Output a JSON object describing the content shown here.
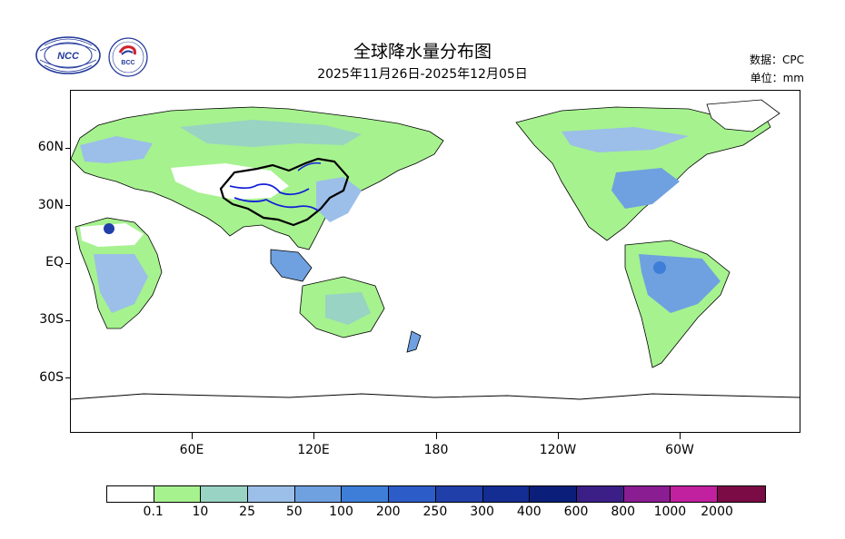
{
  "header": {
    "title": "全球降水量分布图",
    "date_range": "2025年11月26日-2025年12月05日",
    "source": "数据：CPC",
    "unit": "单位：mm"
  },
  "logos": {
    "ncc_text": "NCC",
    "bcc_text": "BCC"
  },
  "map": {
    "projection": "equirectangular, Pacific-centered",
    "lat_labels": [
      "60N",
      "30N",
      "EQ",
      "30S",
      "60S"
    ],
    "lon_labels": [
      "60E",
      "120E",
      "180",
      "120W",
      "60W"
    ]
  },
  "legend": {
    "levels": [
      "0.1",
      "10",
      "25",
      "50",
      "100",
      "200",
      "250",
      "300",
      "400",
      "600",
      "800",
      "1000",
      "2000"
    ],
    "colors": [
      "#ffffff",
      "#a6f28f",
      "#99d3c3",
      "#9bbfe8",
      "#6fa1e0",
      "#3e7ed9",
      "#2c5cc8",
      "#213fa8",
      "#142d93",
      "#0b1f7a",
      "#3b1f86",
      "#8a1d91",
      "#c1209e",
      "#7a0b45"
    ]
  },
  "colors": {
    "land_light": "#a6f28f",
    "land_teal": "#99d3c3",
    "land_blue": "#9bbfe8",
    "land_mid": "#6fa1e0",
    "china_border": "#000000",
    "rivers": "#1420d8"
  }
}
